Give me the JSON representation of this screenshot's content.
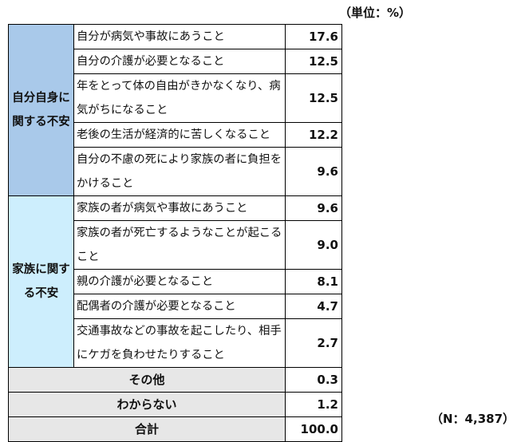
{
  "unit_label": "（単位：%）",
  "sample_label": "（N：4,387）",
  "groups": [
    {
      "label": "自分自身に関する不安",
      "color": "#a9c9ea",
      "items": [
        {
          "text": "自分が病気や事故にあうこと",
          "value": "17.6"
        },
        {
          "text": "自分の介護が必要となること",
          "value": "12.5"
        },
        {
          "text": "年をとって体の自由がきかなくなり、病気がちになること",
          "value": "12.5"
        },
        {
          "text": "老後の生活が経済的に苦しくなること",
          "value": "12.2"
        },
        {
          "text": "自分の不慮の死により家族の者に負担をかけること",
          "value": "9.6"
        }
      ]
    },
    {
      "label": "家族に関する不安",
      "color": "#cdeefd",
      "items": [
        {
          "text": "家族の者が病気や事故にあうこと",
          "value": "9.6"
        },
        {
          "text": "家族の者が死亡するようなことが起こること",
          "value": "9.0"
        },
        {
          "text": "親の介護が必要となること",
          "value": "8.1"
        },
        {
          "text": "配偶者の介護が必要となること",
          "value": "4.7"
        },
        {
          "text": "交通事故などの事故を起こしたり、相手にケガを負わせたりすること",
          "value": "2.7"
        }
      ]
    }
  ],
  "other": [
    {
      "label": "その他",
      "value": "0.3"
    },
    {
      "label": "わからない",
      "value": "1.2"
    },
    {
      "label": "合計",
      "value": "100.0"
    }
  ]
}
